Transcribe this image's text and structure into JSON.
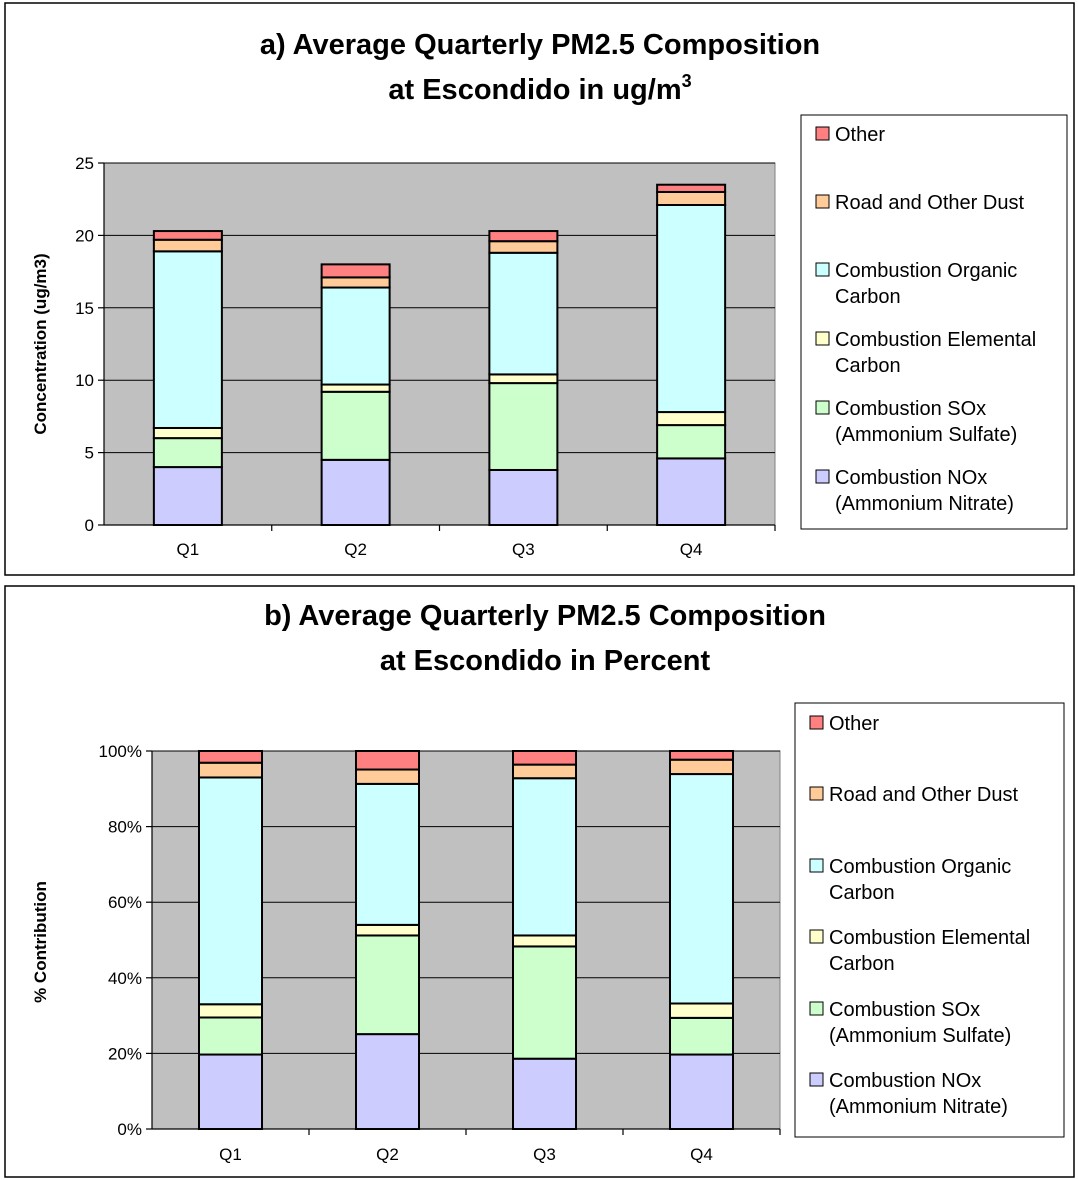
{
  "chart_data": [
    {
      "type": "bar",
      "stacked": true,
      "title_line1": "a) Average Quarterly PM2.5 Composition",
      "title_line2_prefix": "at Escondido in ug/m",
      "title_line2_superscript": "3",
      "ylabel": "Concentration (ug/m3)",
      "xlabel": "",
      "categories": [
        "Q1",
        "Q2",
        "Q3",
        "Q4"
      ],
      "ylim": [
        0,
        25
      ],
      "yticks": [
        "0",
        "5",
        "10",
        "15",
        "20",
        "25"
      ],
      "ytick_values": [
        0,
        5,
        10,
        15,
        20,
        25
      ],
      "grid": true,
      "legend_position": "right",
      "plot_background": "#C0C0C0",
      "series": [
        {
          "name": "Combustion NOx (Ammonium Nitrate)",
          "legend_lines": [
            "Combustion NOx",
            "(Ammonium Nitrate)"
          ],
          "color": "#CCCCFF",
          "values": [
            4.0,
            4.5,
            3.8,
            4.6
          ]
        },
        {
          "name": "Combustion SOx (Ammonium Sulfate)",
          "legend_lines": [
            "Combustion SOx",
            "(Ammonium Sulfate)"
          ],
          "color": "#CCFFCC",
          "values": [
            2.0,
            4.7,
            6.0,
            2.3
          ]
        },
        {
          "name": "Combustion Elemental Carbon",
          "legend_lines": [
            "Combustion Elemental",
            "Carbon"
          ],
          "color": "#FFFFCC",
          "values": [
            0.7,
            0.5,
            0.6,
            0.9
          ]
        },
        {
          "name": "Combustion Organic Carbon",
          "legend_lines": [
            "Combustion Organic",
            "Carbon"
          ],
          "color": "#CCFFFF",
          "values": [
            12.2,
            6.7,
            8.4,
            14.3
          ]
        },
        {
          "name": "Road and Other Dust",
          "legend_lines": [
            "Road and Other Dust"
          ],
          "color": "#FFCC99",
          "values": [
            0.8,
            0.7,
            0.8,
            0.9
          ]
        },
        {
          "name": "Other",
          "legend_lines": [
            "Other"
          ],
          "color": "#FF8080",
          "values": [
            0.6,
            0.9,
            0.7,
            0.5
          ]
        }
      ]
    },
    {
      "type": "bar",
      "stacked": true,
      "percent": true,
      "title_line1": "b) Average Quarterly PM2.5 Composition",
      "title_line2": "at Escondido in Percent",
      "ylabel": "% Contribution",
      "xlabel": "",
      "categories": [
        "Q1",
        "Q2",
        "Q3",
        "Q4"
      ],
      "ylim": [
        0,
        100
      ],
      "yticks": [
        "0%",
        "20%",
        "40%",
        "60%",
        "80%",
        "100%"
      ],
      "ytick_values": [
        0,
        20,
        40,
        60,
        80,
        100
      ],
      "grid": true,
      "legend_position": "right",
      "plot_background": "#C0C0C0",
      "series": [
        {
          "name": "Combustion NOx (Ammonium Nitrate)",
          "legend_lines": [
            "Combustion NOx",
            "(Ammonium Nitrate)"
          ],
          "color": "#CCCCFF",
          "values": [
            19.7,
            25.1,
            18.6,
            19.7
          ]
        },
        {
          "name": "Combustion SOx (Ammonium Sulfate)",
          "legend_lines": [
            "Combustion SOx",
            "(Ammonium Sulfate)"
          ],
          "color": "#CCFFCC",
          "values": [
            9.8,
            26.1,
            29.7,
            9.7
          ]
        },
        {
          "name": "Combustion Elemental Carbon",
          "legend_lines": [
            "Combustion Elemental",
            "Carbon"
          ],
          "color": "#FFFFCC",
          "values": [
            3.5,
            2.8,
            2.9,
            3.8
          ]
        },
        {
          "name": "Combustion Organic Carbon",
          "legend_lines": [
            "Combustion Organic",
            "Carbon"
          ],
          "color": "#CCFFFF",
          "values": [
            60.0,
            37.3,
            41.6,
            60.7
          ]
        },
        {
          "name": "Road and Other Dust",
          "legend_lines": [
            "Road and Other Dust"
          ],
          "color": "#FFCC99",
          "values": [
            3.9,
            3.8,
            3.6,
            3.8
          ]
        },
        {
          "name": "Other",
          "legend_lines": [
            "Other"
          ],
          "color": "#FF8080",
          "values": [
            3.1,
            4.9,
            3.6,
            2.3
          ]
        }
      ]
    }
  ]
}
